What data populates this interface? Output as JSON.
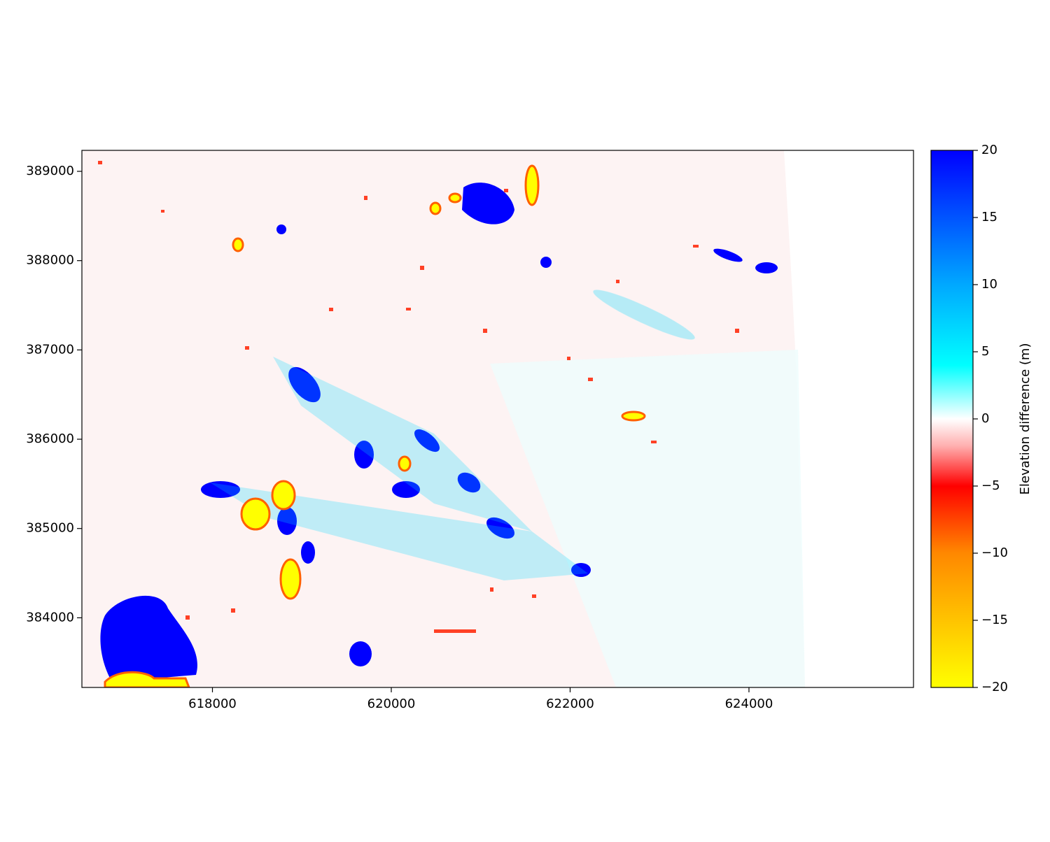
{
  "chart_data": {
    "type": "raster",
    "xlim": [
      616540,
      625840
    ],
    "ylim": [
      383220,
      389235
    ],
    "xticks": [
      618000,
      620000,
      622000,
      624000
    ],
    "yticks": [
      384000,
      385000,
      386000,
      387000,
      388000,
      389000
    ],
    "colorbar": {
      "label": "Elevation difference (m)",
      "clim": [
        -20,
        20
      ],
      "ticks": [
        {
          "value": -20,
          "label": "−20"
        },
        {
          "value": -15,
          "label": "−15"
        },
        {
          "value": -10,
          "label": "−10"
        },
        {
          "value": -5,
          "label": "−5"
        },
        0,
        5,
        10,
        15,
        20
      ]
    }
  }
}
